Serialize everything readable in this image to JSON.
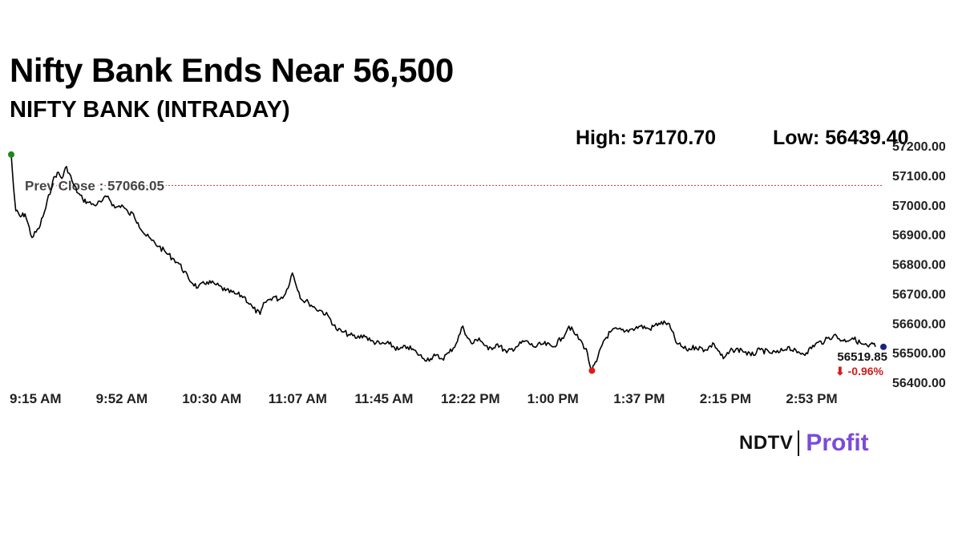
{
  "header": {
    "title": "Nifty Bank Ends Near 56,500",
    "subtitle": "NIFTY BANK (INTRADAY)",
    "high_text": "High: 57170.70",
    "low_text": "Low: 56439.40"
  },
  "logo": {
    "brand": "NDTV",
    "product": "Profit"
  },
  "colors": {
    "line": "#000000",
    "prev_close_line": "#c0392b",
    "open_marker": "#1a8a1a",
    "low_marker": "#e01818",
    "last_marker": "#1a237e",
    "change_text": "#d01c1c",
    "axis_text": "#222222",
    "logo_accent": "#7b4bd6"
  },
  "chart_data": {
    "type": "line",
    "title": "NIFTY BANK (INTRADAY)",
    "ylim": [
      56400,
      57200
    ],
    "yticks": [
      56400,
      56500,
      56600,
      56700,
      56800,
      56900,
      57000,
      57100,
      57200
    ],
    "ytick_labels": [
      "56400.00",
      "56500.00",
      "56600.00",
      "56700.00",
      "56800.00",
      "56900.00",
      "57000.00",
      "57100.00",
      "57200.00"
    ],
    "x_tick_labels": [
      "9:15 AM",
      "9:52 AM",
      "10:30 AM",
      "11:07 AM",
      "11:45 AM",
      "12:22 PM",
      "1:00 PM",
      "1:37 PM",
      "2:15 PM",
      "2:53 PM"
    ],
    "x_start": "9:15",
    "x_end": "15:30",
    "grid": false,
    "prev_close": 57066.05,
    "prev_close_label": "Prev Close : 57066.05",
    "last_value_label": "56519.85",
    "change_label": "-0.96%",
    "series": [
      {
        "x": [
          "9:15",
          "9:16",
          "9:17",
          "9:19",
          "9:21",
          "9:24",
          "9:27",
          "9:30",
          "9:33",
          "9:35",
          "9:37",
          "9:39",
          "9:42",
          "9:44",
          "9:46",
          "9:48",
          "9:51",
          "9:54",
          "9:57",
          "10:00",
          "10:03",
          "10:06",
          "10:08",
          "10:10",
          "10:13",
          "10:16",
          "10:19",
          "10:22",
          "10:25",
          "10:28",
          "10:32",
          "10:36",
          "10:40",
          "10:44",
          "10:48",
          "10:52",
          "10:56",
          "11:00",
          "11:03",
          "11:05",
          "11:07",
          "11:09",
          "11:11",
          "11:14",
          "11:17",
          "11:21",
          "11:24",
          "11:27",
          "11:30",
          "11:33",
          "11:36",
          "11:39",
          "11:42",
          "11:45",
          "11:48",
          "11:51",
          "11:55",
          "11:59",
          "12:03",
          "12:07",
          "12:11",
          "12:14",
          "12:17",
          "12:19",
          "12:22",
          "12:25",
          "12:28",
          "12:31",
          "12:33",
          "12:35",
          "12:38",
          "12:42",
          "12:46",
          "12:50",
          "12:54",
          "12:58",
          "13:02",
          "13:06",
          "13:10",
          "13:14",
          "13:17",
          "13:20",
          "13:23",
          "13:25",
          "13:26",
          "13:27",
          "13:29",
          "13:32",
          "13:35",
          "13:38",
          "13:41",
          "13:44",
          "13:48",
          "13:52",
          "13:56",
          "14:00",
          "14:04",
          "14:08",
          "14:12",
          "14:16",
          "14:20",
          "14:24",
          "14:28",
          "14:32",
          "14:36",
          "14:40",
          "14:44",
          "14:48",
          "14:52",
          "14:56",
          "15:00",
          "15:04",
          "15:08",
          "15:12",
          "15:16",
          "15:20",
          "15:24",
          "15:27",
          "15:29",
          "15:30"
        ],
        "y": [
          57170.7,
          57060,
          56980,
          56960,
          56970,
          56890,
          56920,
          56990,
          57080,
          57110,
          57090,
          57130,
          57070,
          57040,
          57020,
          57010,
          57000,
          57010,
          57030,
          56990,
          57000,
          56970,
          56970,
          56940,
          56900,
          56880,
          56860,
          56840,
          56820,
          56800,
          56750,
          56720,
          56740,
          56730,
          56710,
          56700,
          56690,
          56650,
          56630,
          56670,
          56680,
          56690,
          56680,
          56700,
          56770,
          56680,
          56670,
          56650,
          56640,
          56620,
          56580,
          56570,
          56560,
          56550,
          56560,
          56540,
          56530,
          56530,
          56510,
          56520,
          56500,
          56480,
          56480,
          56490,
          56480,
          56500,
          56530,
          56590,
          56550,
          56530,
          56550,
          56510,
          56530,
          56500,
          56520,
          56540,
          56520,
          56530,
          56520,
          56550,
          56590,
          56560,
          56530,
          56500,
          56460,
          56439.4,
          56470,
          56540,
          56570,
          56580,
          56570,
          56580,
          56590,
          56580,
          56600,
          56600,
          56530,
          56510,
          56520,
          56510,
          56530,
          56480,
          56510,
          56510,
          56490,
          56510,
          56500,
          56500,
          56520,
          56500,
          56500,
          56530,
          56540,
          56560,
          56540,
          56550,
          56530,
          56520,
          56530,
          56519.85
        ]
      }
    ]
  }
}
